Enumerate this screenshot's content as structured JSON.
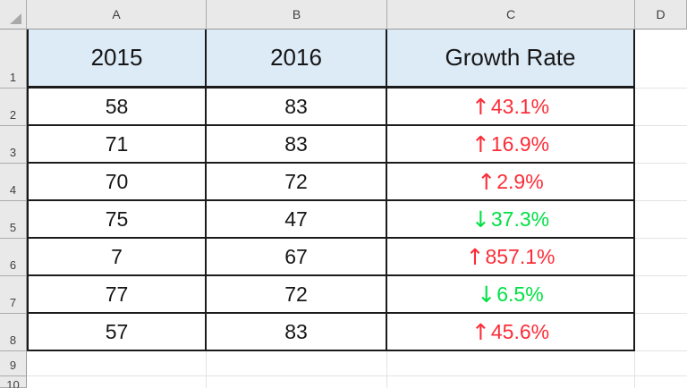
{
  "sheet": {
    "column_headers": {
      "a": "A",
      "b": "B",
      "c": "C",
      "d": "D"
    },
    "row_numbers": [
      "1",
      "2",
      "3",
      "4",
      "5",
      "6",
      "7",
      "8",
      "9",
      "10"
    ],
    "header_row": {
      "a": "2015",
      "b": "2016",
      "c": "Growth Rate"
    },
    "rows": [
      {
        "a": "58",
        "b": "83",
        "arrow": "↑",
        "value": "43.1%",
        "trend": "up"
      },
      {
        "a": "71",
        "b": "83",
        "arrow": "↑",
        "value": "16.9%",
        "trend": "up"
      },
      {
        "a": "70",
        "b": "72",
        "arrow": "↑",
        "value": "2.9%",
        "trend": "up"
      },
      {
        "a": "75",
        "b": "47",
        "arrow": "↓",
        "value": "37.3%",
        "trend": "down"
      },
      {
        "a": "7",
        "b": "67",
        "arrow": "↑",
        "value": "857.1%",
        "trend": "up"
      },
      {
        "a": "77",
        "b": "72",
        "arrow": "↓",
        "value": "6.5%",
        "trend": "down"
      },
      {
        "a": "57",
        "b": "83",
        "arrow": "↑",
        "value": "45.6%",
        "trend": "up"
      }
    ],
    "colors": {
      "header_fill": "#DDEBF7",
      "up_text": "#FB2D38",
      "down_text": "#00E144",
      "table_border": "#1B1B1B",
      "chrome_bg": "#E9E9E9",
      "gridline": "#E3E3E3"
    }
  }
}
